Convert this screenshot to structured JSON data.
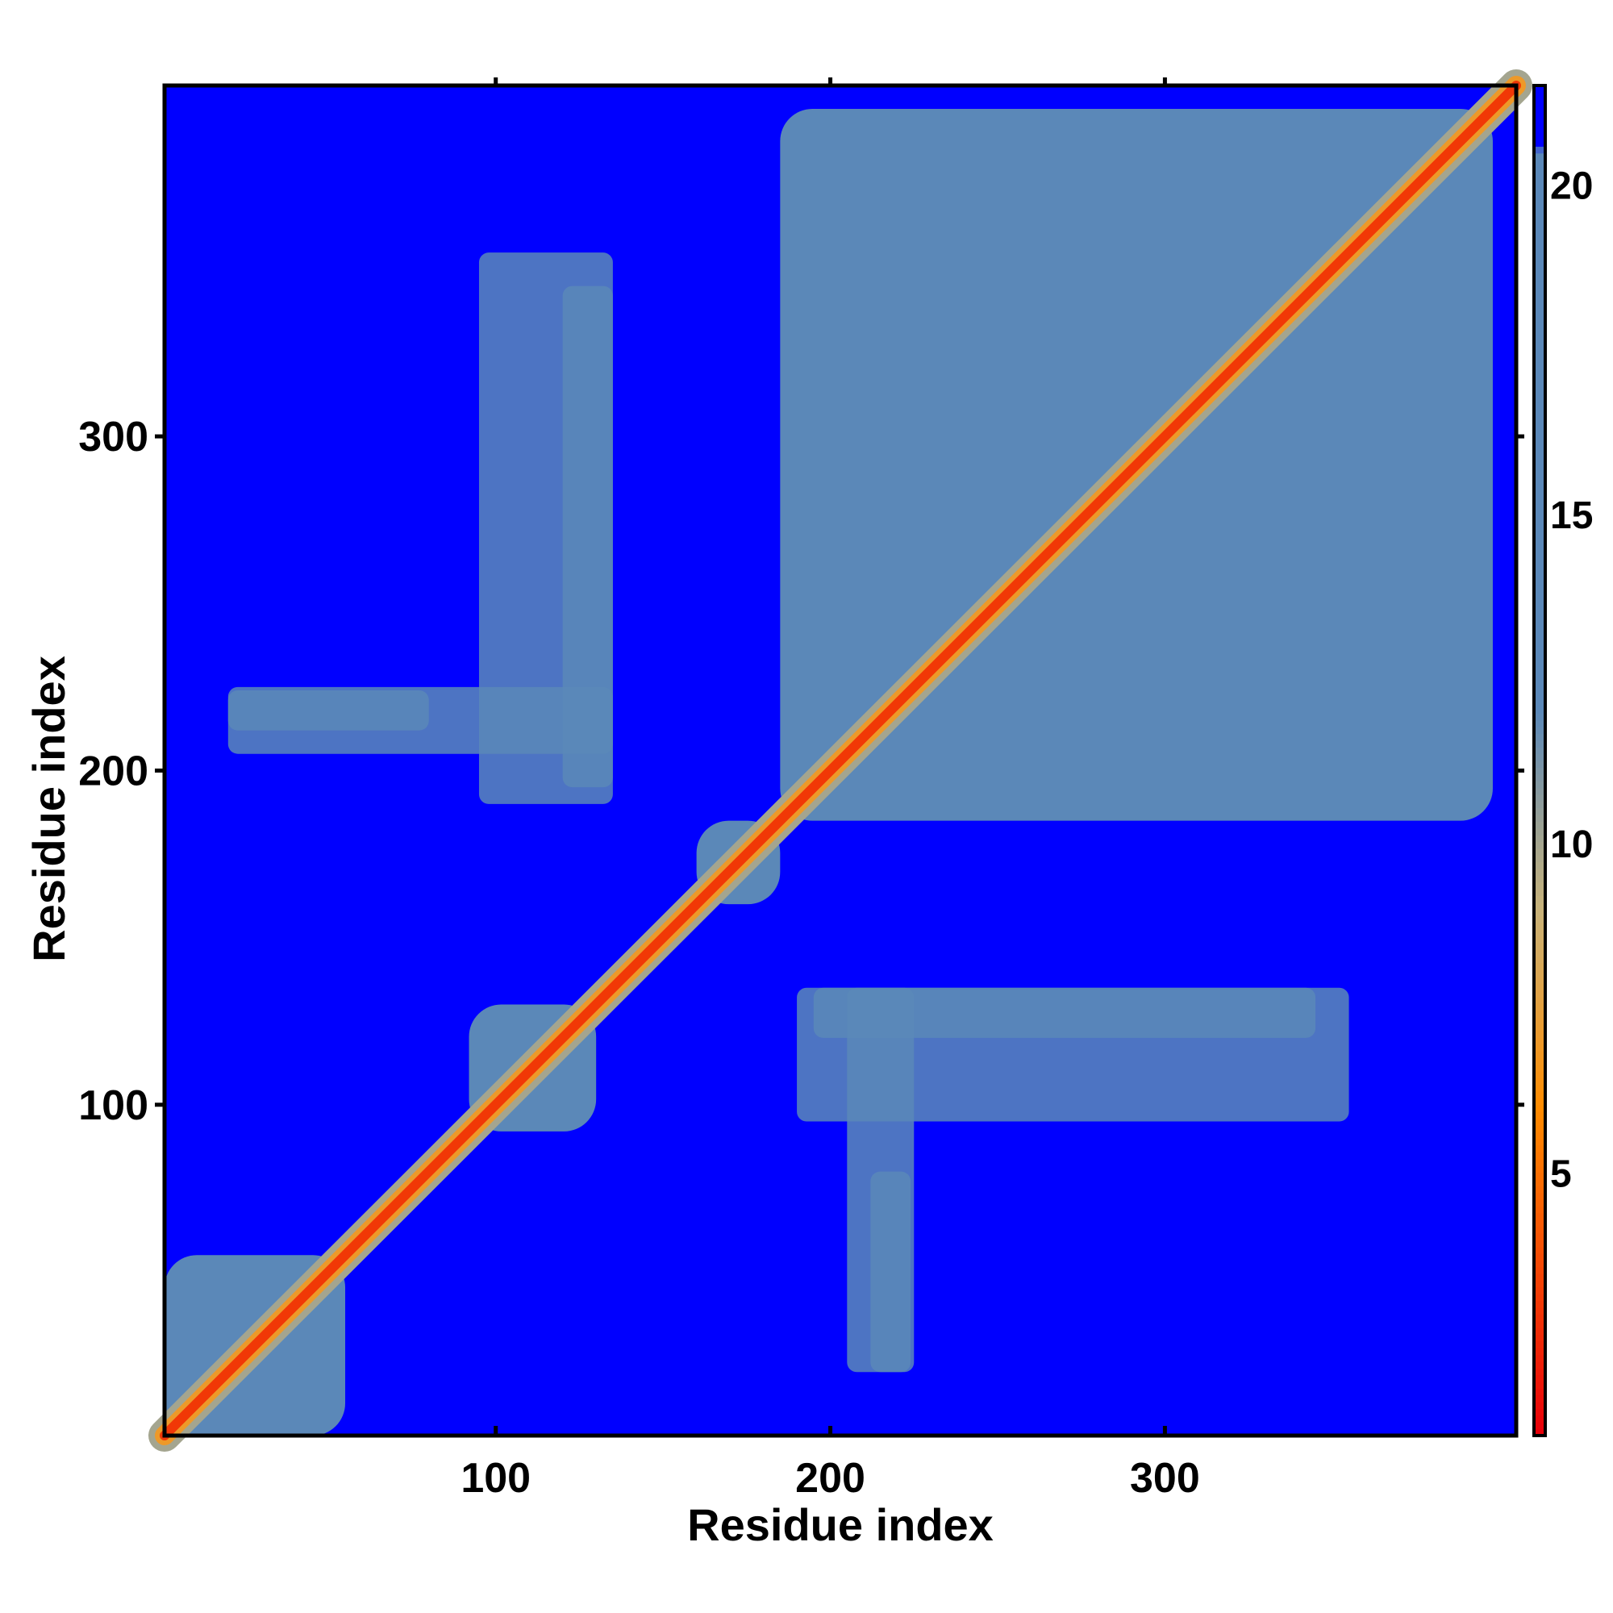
{
  "chart_data": {
    "type": "heatmap",
    "title": "",
    "xlabel": "Residue index",
    "ylabel": "Residue index",
    "xlim": [
      1,
      405
    ],
    "ylim": [
      1,
      405
    ],
    "xticks": [
      100,
      200,
      300
    ],
    "yticks": [
      100,
      200,
      300
    ],
    "colorbar": {
      "range": [
        1,
        21.5
      ],
      "ticks": [
        5,
        10,
        15,
        20
      ],
      "colors": {
        "low": "#e8000a",
        "orange": "#ff8c00",
        "tan": "#c8b37a",
        "steel": "#5b88b8",
        "far": "#0000ff"
      }
    },
    "domains": [
      {
        "start": 1,
        "end": 55,
        "value": 14
      },
      {
        "start": 92,
        "end": 130,
        "value": 14
      },
      {
        "start": 160,
        "end": 185,
        "value": 13
      },
      {
        "start": 185,
        "end": 398,
        "value": 14
      }
    ],
    "off_diagonal_patches": [
      {
        "x": [
          95,
          135
        ],
        "y": [
          190,
          355
        ],
        "value": 16
      },
      {
        "x": [
          20,
          80
        ],
        "y": [
          212,
          224
        ],
        "value": 17
      },
      {
        "x": [
          195,
          345
        ],
        "y": [
          120,
          135
        ],
        "value": 16
      },
      {
        "x": [
          205,
          225
        ],
        "y": [
          20,
          135
        ],
        "value": 17
      }
    ]
  }
}
